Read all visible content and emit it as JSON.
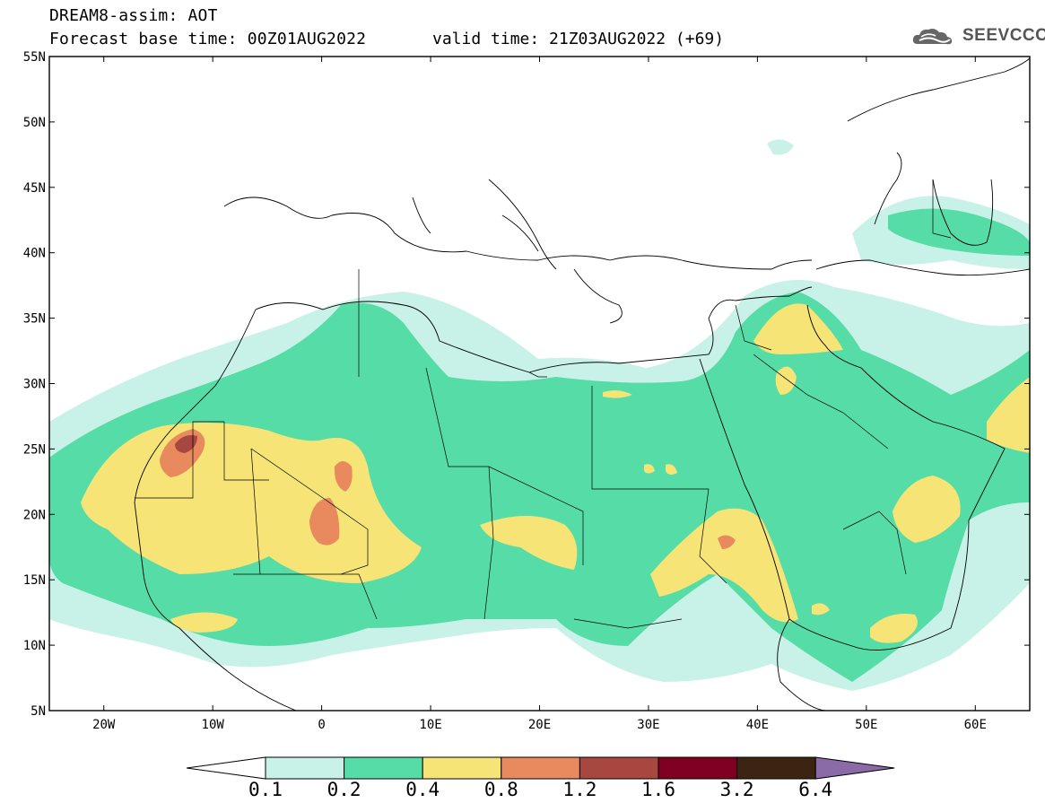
{
  "header": {
    "title_line1": "DREAM8-assim: AOT",
    "title_line2": "Forecast base time: 00Z01AUG2022",
    "valid_time": "valid time: 21Z03AUG2022 (+69)",
    "logo_text": "SEEVCCC",
    "logo_icon": "cloud-icon"
  },
  "map": {
    "projection": "lat-lon",
    "lon_range": [
      -25,
      65
    ],
    "lat_range": [
      5,
      55
    ],
    "lat_ticks": [
      {
        "value": 55,
        "label": "55N"
      },
      {
        "value": 50,
        "label": "50N"
      },
      {
        "value": 45,
        "label": "45N"
      },
      {
        "value": 40,
        "label": "40N"
      },
      {
        "value": 35,
        "label": "35N"
      },
      {
        "value": 30,
        "label": "30N"
      },
      {
        "value": 25,
        "label": "25N"
      },
      {
        "value": 20,
        "label": "20N"
      },
      {
        "value": 15,
        "label": "15N"
      },
      {
        "value": 10,
        "label": "10N"
      },
      {
        "value": 5,
        "label": "5N"
      }
    ],
    "lon_ticks": [
      {
        "value": -20,
        "label": "20W"
      },
      {
        "value": -10,
        "label": "10W"
      },
      {
        "value": 0,
        "label": "0"
      },
      {
        "value": 10,
        "label": "10E"
      },
      {
        "value": 20,
        "label": "20E"
      },
      {
        "value": 30,
        "label": "30E"
      },
      {
        "value": 40,
        "label": "40E"
      },
      {
        "value": 50,
        "label": "50E"
      },
      {
        "value": 60,
        "label": "60E"
      }
    ]
  },
  "colorbar": {
    "levels": [
      "0.1",
      "0.2",
      "0.4",
      "0.8",
      "1.2",
      "1.6",
      "3.2",
      "6.4"
    ],
    "colors": [
      "#ffffff",
      "#c8f1e8",
      "#56dca7",
      "#f6e477",
      "#e8895e",
      "#a84640",
      "#7f0020",
      "#3b2412",
      "#8b6aa8"
    ]
  }
}
